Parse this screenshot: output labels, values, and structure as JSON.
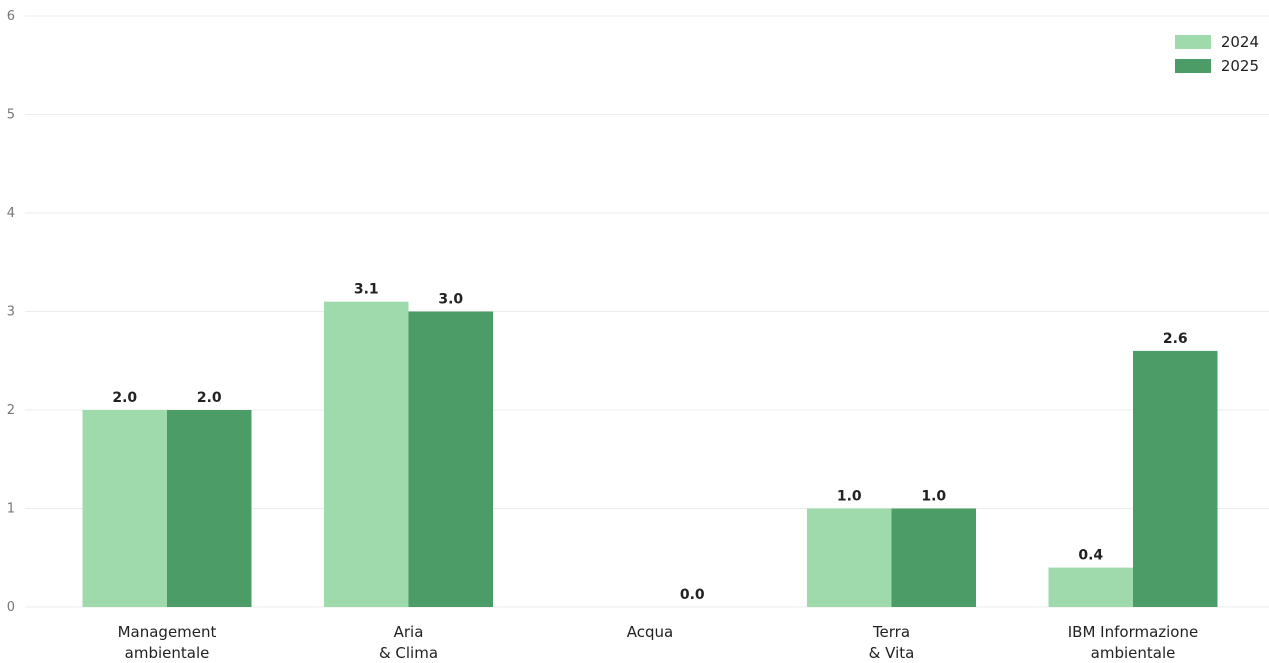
{
  "chart_data": {
    "type": "bar",
    "categories": [
      [
        "Management",
        "ambientale"
      ],
      [
        "Aria",
        "& Clima"
      ],
      [
        "Acqua"
      ],
      [
        "Terra",
        "& Vita"
      ],
      [
        "IBM Informazione",
        "ambientale"
      ]
    ],
    "series": [
      {
        "name": "2024",
        "color": "#9fdaac",
        "values": [
          2.0,
          3.1,
          0.0,
          1.0,
          0.4
        ],
        "labels": [
          "2.0",
          "3.1",
          "",
          "1.0",
          "0.4"
        ]
      },
      {
        "name": "2025",
        "color": "#4b9c67",
        "values": [
          2.0,
          3.0,
          0.0,
          1.0,
          2.6
        ],
        "labels": [
          "2.0",
          "3.0",
          "0.0",
          "1.0",
          "2.6"
        ]
      }
    ],
    "ylim": [
      0,
      6
    ],
    "yticks": [
      "0",
      "1",
      "2",
      "3",
      "4",
      "5",
      "6"
    ],
    "grid": true,
    "legend_position": "top-right",
    "title": "",
    "xlabel": "",
    "ylabel": ""
  }
}
